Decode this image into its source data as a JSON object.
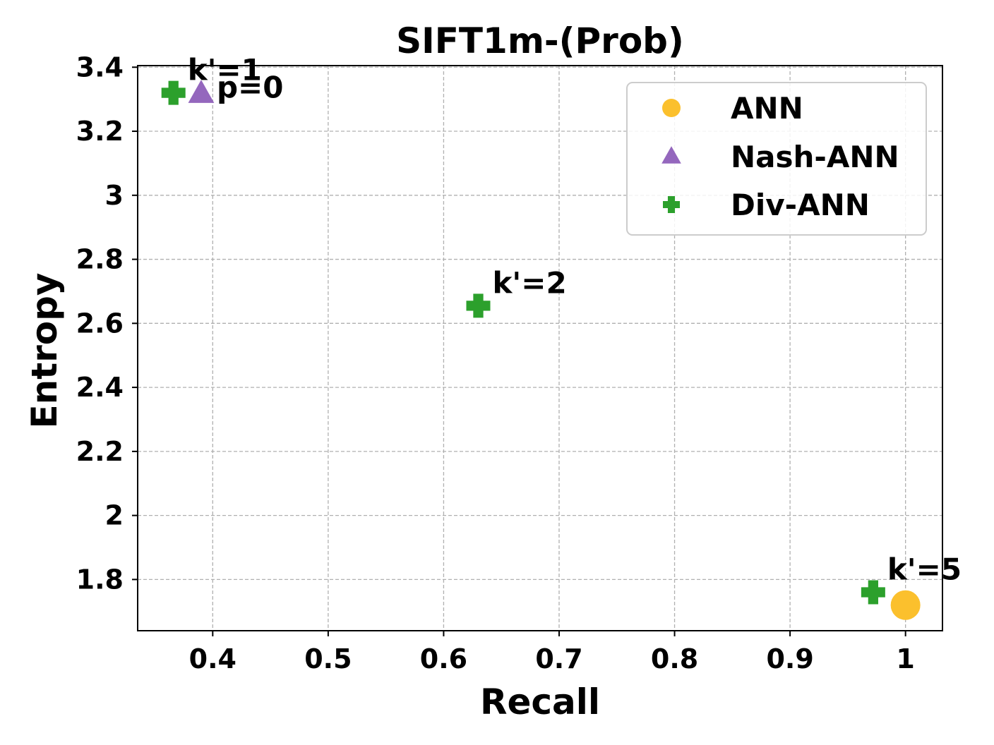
{
  "chart_data": {
    "type": "scatter",
    "title": "SIFT1m-(Prob)",
    "xlabel": "Recall",
    "ylabel": "Entropy",
    "xlim": [
      0.335,
      1.032
    ],
    "ylim": [
      1.64,
      3.405
    ],
    "xticks": [
      {
        "value": 0.4,
        "label": "0.4"
      },
      {
        "value": 0.5,
        "label": "0.5"
      },
      {
        "value": 0.6,
        "label": "0.6"
      },
      {
        "value": 0.7,
        "label": "0.7"
      },
      {
        "value": 0.8,
        "label": "0.8"
      },
      {
        "value": 0.9,
        "label": "0.9"
      },
      {
        "value": 1.0,
        "label": "1"
      }
    ],
    "yticks": [
      {
        "value": 1.8,
        "label": "1.8"
      },
      {
        "value": 2.0,
        "label": "2"
      },
      {
        "value": 2.2,
        "label": "2.2"
      },
      {
        "value": 2.4,
        "label": "2.4"
      },
      {
        "value": 2.6,
        "label": "2.6"
      },
      {
        "value": 2.8,
        "label": "2.8"
      },
      {
        "value": 3.0,
        "label": "3"
      },
      {
        "value": 3.2,
        "label": "3.2"
      },
      {
        "value": 3.4,
        "label": "3.4"
      }
    ],
    "grid": true,
    "legend_position": "top-right",
    "series": [
      {
        "name": "ANN",
        "marker": "circle",
        "color": "#FBC02D",
        "points": [
          {
            "x": 1.0,
            "y": 1.72,
            "label": ""
          }
        ]
      },
      {
        "name": "Nash-ANN",
        "marker": "triangle",
        "color": "#9467BD",
        "points": [
          {
            "x": 0.39,
            "y": 3.32,
            "label": "p=0"
          }
        ]
      },
      {
        "name": "Div-ANN",
        "marker": "plus",
        "color": "#2CA02C",
        "points": [
          {
            "x": 0.366,
            "y": 3.32,
            "label": "k'=1"
          },
          {
            "x": 0.63,
            "y": 2.655,
            "label": "k'=2"
          },
          {
            "x": 0.972,
            "y": 1.76,
            "label": "k'=5"
          }
        ]
      }
    ]
  }
}
